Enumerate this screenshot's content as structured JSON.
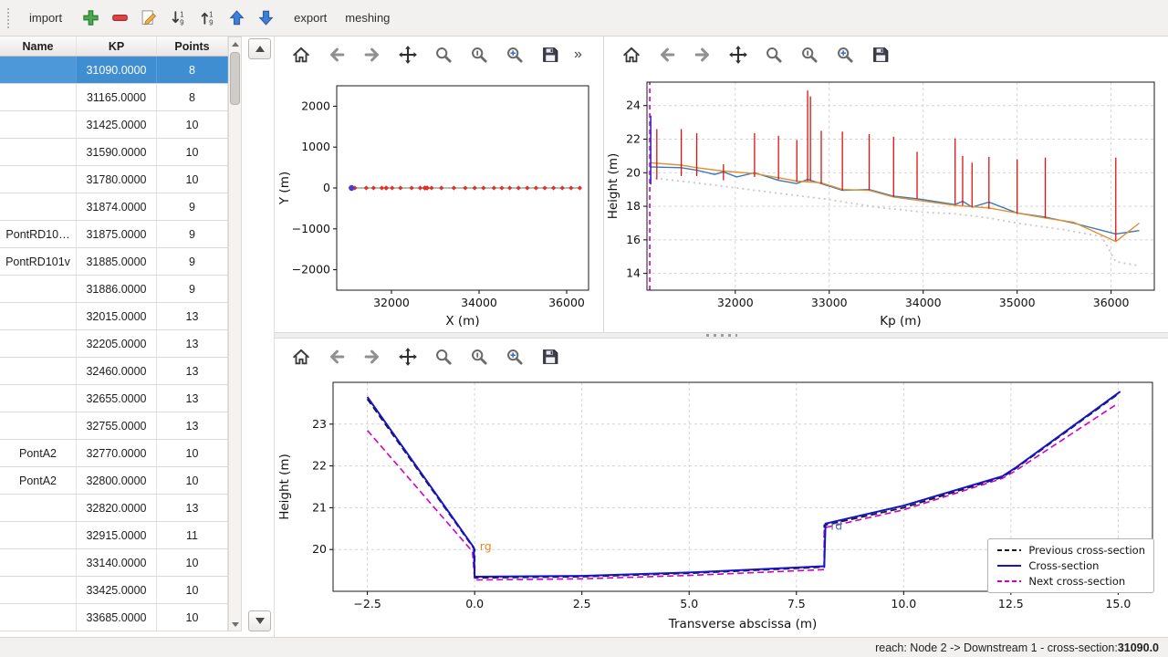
{
  "menubar": {
    "import_label": "import",
    "export_label": "export",
    "meshing_label": "meshing",
    "icons": [
      "add",
      "remove",
      "edit",
      "sort-descending",
      "sort-ascending",
      "move-up",
      "move-down"
    ]
  },
  "plot_toolbar": {
    "icons": [
      "home",
      "back",
      "forward",
      "pan",
      "zoom",
      "subplots",
      "customize",
      "save"
    ],
    "overflow_label": "»"
  },
  "table": {
    "columns": [
      "Name",
      "KP",
      "Points"
    ],
    "selected_index": 0,
    "rows": [
      {
        "name": "",
        "kp": "31090.0000",
        "points": "8"
      },
      {
        "name": "",
        "kp": "31165.0000",
        "points": "8"
      },
      {
        "name": "",
        "kp": "31425.0000",
        "points": "10"
      },
      {
        "name": "",
        "kp": "31590.0000",
        "points": "10"
      },
      {
        "name": "",
        "kp": "31780.0000",
        "points": "10"
      },
      {
        "name": "",
        "kp": "31874.0000",
        "points": "9"
      },
      {
        "name": "PontRD10…",
        "kp": "31875.0000",
        "points": "9"
      },
      {
        "name": "PontRD101v",
        "kp": "31885.0000",
        "points": "9"
      },
      {
        "name": "",
        "kp": "31886.0000",
        "points": "9"
      },
      {
        "name": "",
        "kp": "32015.0000",
        "points": "13"
      },
      {
        "name": "",
        "kp": "32205.0000",
        "points": "13"
      },
      {
        "name": "",
        "kp": "32460.0000",
        "points": "13"
      },
      {
        "name": "",
        "kp": "32655.0000",
        "points": "13"
      },
      {
        "name": "",
        "kp": "32755.0000",
        "points": "13"
      },
      {
        "name": "PontA2",
        "kp": "32770.0000",
        "points": "10"
      },
      {
        "name": "PontA2",
        "kp": "32800.0000",
        "points": "10"
      },
      {
        "name": "",
        "kp": "32820.0000",
        "points": "13"
      },
      {
        "name": "",
        "kp": "32915.0000",
        "points": "11"
      },
      {
        "name": "",
        "kp": "33140.0000",
        "points": "10"
      },
      {
        "name": "",
        "kp": "33425.0000",
        "points": "10"
      },
      {
        "name": "",
        "kp": "33685.0000",
        "points": "10"
      }
    ]
  },
  "status": {
    "prefix": "reach: Node 2 -> Downstream 1 - cross-section: ",
    "value": "31090.0"
  },
  "colors": {
    "selection": "#3f8ed2",
    "cross_section_line": "#1414cc",
    "previous_line": "#1a1a1a",
    "next_line": "#cc00cc",
    "marker_red": "#e03125",
    "river_axis": "#9aa79b"
  },
  "chart_data": [
    {
      "id": "plan",
      "type": "line",
      "xlabel": "X (m)",
      "ylabel": "Y (m)",
      "xlim": [
        30750,
        36500
      ],
      "ylim": [
        -2500,
        2500
      ],
      "xticks": [
        32000,
        34000,
        36000
      ],
      "xtick_labels": [
        "32000",
        "34000",
        "36000"
      ],
      "yticks": [
        -2000,
        -1000,
        0,
        1000,
        2000
      ],
      "ytick_labels": [
        "−2000",
        "−1000",
        "0",
        "1000",
        "2000"
      ],
      "grid": false,
      "series": [
        {
          "name": "river-axis",
          "type": "line",
          "color": "#9aa79b",
          "width": 1.4,
          "x": [
            31090,
            36300
          ],
          "y": [
            0,
            0
          ]
        },
        {
          "name": "cross-section-markers",
          "type": "markers",
          "marker": "diamond",
          "color": "#e03125",
          "size": 2.6,
          "x": [
            31165,
            31425,
            31590,
            31780,
            31874,
            31885,
            32015,
            32205,
            32460,
            32655,
            32755,
            32770,
            32800,
            32820,
            32915,
            33140,
            33425,
            33685,
            33900,
            34100,
            34340,
            34520,
            34700,
            34900,
            35100,
            35300,
            35500,
            35700,
            35900,
            36100,
            36300
          ],
          "y": [
            0,
            0,
            0,
            0,
            0,
            0,
            0,
            0,
            0,
            0,
            0,
            0,
            0,
            0,
            0,
            0,
            0,
            0,
            0,
            0,
            0,
            0,
            0,
            0,
            0,
            0,
            0,
            0,
            0,
            0,
            0
          ]
        },
        {
          "name": "selected-cross-section-marker",
          "type": "markers",
          "marker": "circle",
          "color": "#4b3bd0",
          "size": 3.2,
          "x": [
            31090
          ],
          "y": [
            0
          ]
        }
      ]
    },
    {
      "id": "profile",
      "type": "line",
      "xlabel": "Kp (m)",
      "ylabel": "Height (m)",
      "xlim": [
        31060,
        36460
      ],
      "ylim": [
        13.0,
        25.4
      ],
      "xticks": [
        32000,
        33000,
        34000,
        35000,
        36000
      ],
      "xtick_labels": [
        "32000",
        "33000",
        "34000",
        "35000",
        "36000"
      ],
      "yticks": [
        14,
        16,
        18,
        20,
        22,
        24
      ],
      "ytick_labels": [
        "14",
        "16",
        "18",
        "20",
        "22",
        "24"
      ],
      "grid": true,
      "series": [
        {
          "name": "bed-minimum-dotted",
          "type": "line",
          "color": "#c8c8c8",
          "width": 1.8,
          "dash": "2 4",
          "x": [
            31090,
            31500,
            32000,
            32500,
            33000,
            33500,
            34000,
            34340,
            34700,
            35000,
            35500,
            35900,
            36050,
            36300
          ],
          "y": [
            19.7,
            19.45,
            19.1,
            18.75,
            18.4,
            17.95,
            17.65,
            17.55,
            17.3,
            17.0,
            16.6,
            16.2,
            14.7,
            14.45
          ]
        },
        {
          "name": "bank-line-blue",
          "type": "line",
          "color": "#3c78b4",
          "width": 1.4,
          "x": [
            31090,
            31425,
            31590,
            31780,
            31874,
            32015,
            32205,
            32460,
            32655,
            32770,
            32915,
            33140,
            33425,
            33685,
            33935,
            34340,
            34420,
            34520,
            34700,
            35000,
            35300,
            35600,
            36050,
            36300
          ],
          "y": [
            20.35,
            20.3,
            20.15,
            19.9,
            20.05,
            19.75,
            20.0,
            19.55,
            19.35,
            19.6,
            19.35,
            18.95,
            19.0,
            18.6,
            18.45,
            18.1,
            18.3,
            17.95,
            18.25,
            17.6,
            17.35,
            17.0,
            16.35,
            16.55
          ]
        },
        {
          "name": "bank-line-orange",
          "type": "line",
          "color": "#e09030",
          "width": 1.4,
          "x": [
            31090,
            31425,
            31590,
            31874,
            32205,
            32460,
            32655,
            32915,
            33140,
            33425,
            33685,
            34340,
            34700,
            35000,
            35300,
            35600,
            36050,
            36300
          ],
          "y": [
            20.6,
            20.45,
            20.3,
            20.1,
            19.95,
            19.7,
            19.5,
            19.4,
            19.0,
            18.95,
            18.55,
            18.05,
            17.9,
            17.6,
            17.3,
            17.05,
            15.9,
            17.0
          ]
        },
        {
          "name": "cross-section-extents",
          "type": "vlines",
          "color": "#dd1111",
          "width": 1.3,
          "segments": [
            [
              31165,
              19.6,
              22.6
            ],
            [
              31425,
              19.8,
              22.6
            ],
            [
              31590,
              19.8,
              22.35
            ],
            [
              31874,
              19.55,
              20.5
            ],
            [
              32205,
              19.75,
              22.35
            ],
            [
              32460,
              19.6,
              22.2
            ],
            [
              32655,
              19.45,
              21.95
            ],
            [
              32770,
              19.5,
              24.9
            ],
            [
              32800,
              19.5,
              24.55
            ],
            [
              32915,
              19.35,
              22.5
            ],
            [
              33140,
              18.95,
              22.45
            ],
            [
              33425,
              18.95,
              22.3
            ],
            [
              33685,
              18.55,
              22.15
            ],
            [
              33935,
              18.45,
              21.25
            ],
            [
              34340,
              18.1,
              22.05
            ],
            [
              34420,
              18.05,
              21.0
            ],
            [
              34520,
              17.95,
              20.6
            ],
            [
              34700,
              17.85,
              20.95
            ],
            [
              35000,
              17.55,
              20.8
            ],
            [
              35300,
              17.3,
              20.9
            ],
            [
              36050,
              15.95,
              20.9
            ]
          ]
        },
        {
          "name": "current-section-extent",
          "type": "vlines",
          "color": "#2828c8",
          "width": 1.6,
          "segments": [
            [
              31100,
              19.3,
              23.4
            ]
          ]
        },
        {
          "name": "current-section-position",
          "type": "vlines",
          "color": "#cc00cc",
          "width": 1.6,
          "dash": "5 4",
          "segments": [
            [
              31090,
              13.0,
              25.4
            ]
          ]
        }
      ]
    },
    {
      "id": "cross-section",
      "type": "line",
      "xlabel": "Transverse abscissa (m)",
      "ylabel": "Height (m)",
      "xlim": [
        -3.3,
        15.8
      ],
      "ylim": [
        19.0,
        24.0
      ],
      "xticks": [
        -2.5,
        0,
        2.5,
        5,
        7.5,
        10,
        12.5,
        15
      ],
      "xtick_labels": [
        "−2.5",
        "0.0",
        "2.5",
        "5.0",
        "7.5",
        "10.0",
        "12.5",
        "15.0"
      ],
      "yticks": [
        20,
        21,
        22,
        23
      ],
      "ytick_labels": [
        "20",
        "21",
        "22",
        "23"
      ],
      "grid": true,
      "series": [
        {
          "name": "previous-cross-section",
          "type": "line",
          "color": "#1a1a1a",
          "width": 1.8,
          "dash": "7 4",
          "x": [
            -2.5,
            0,
            0,
            2.5,
            5,
            8.15,
            8.15,
            10,
            12.3,
            12.6,
            15
          ],
          "y": [
            23.6,
            20.0,
            19.32,
            19.35,
            19.43,
            19.58,
            20.58,
            21.0,
            21.73,
            21.93,
            23.72
          ]
        },
        {
          "name": "next-cross-section",
          "type": "line",
          "color": "#cc00cc",
          "width": 1.6,
          "dash": "7 4",
          "x": [
            -2.5,
            -0.05,
            0,
            2.5,
            5,
            8.15,
            8.15,
            10,
            12.3,
            12.6,
            15
          ],
          "y": [
            22.85,
            19.95,
            19.27,
            19.3,
            19.38,
            19.52,
            20.52,
            20.95,
            21.7,
            21.88,
            23.5
          ]
        },
        {
          "name": "cross-section",
          "type": "line",
          "color": "#1414cc",
          "width": 2,
          "x": [
            -2.5,
            -0.02,
            0,
            2.5,
            5,
            8.15,
            8.18,
            10,
            12.3,
            12.6,
            15.05
          ],
          "y": [
            23.65,
            20.05,
            19.35,
            19.37,
            19.45,
            19.6,
            20.62,
            21.05,
            21.75,
            21.95,
            23.78
          ]
        }
      ],
      "annotations": [
        {
          "text": "rg",
          "x": 0.12,
          "y": 19.98,
          "color": "#e8871e"
        },
        {
          "text": "rd",
          "x": 8.3,
          "y": 20.47,
          "color": "#4878a8"
        }
      ],
      "legend": {
        "position": "lower-right",
        "entries": [
          {
            "label": "Previous cross-section",
            "color": "#1a1a1a",
            "dash": true
          },
          {
            "label": "Cross-section",
            "color": "#1414cc",
            "dash": false
          },
          {
            "label": "Next cross-section",
            "color": "#cc00cc",
            "dash": true
          }
        ]
      }
    }
  ]
}
